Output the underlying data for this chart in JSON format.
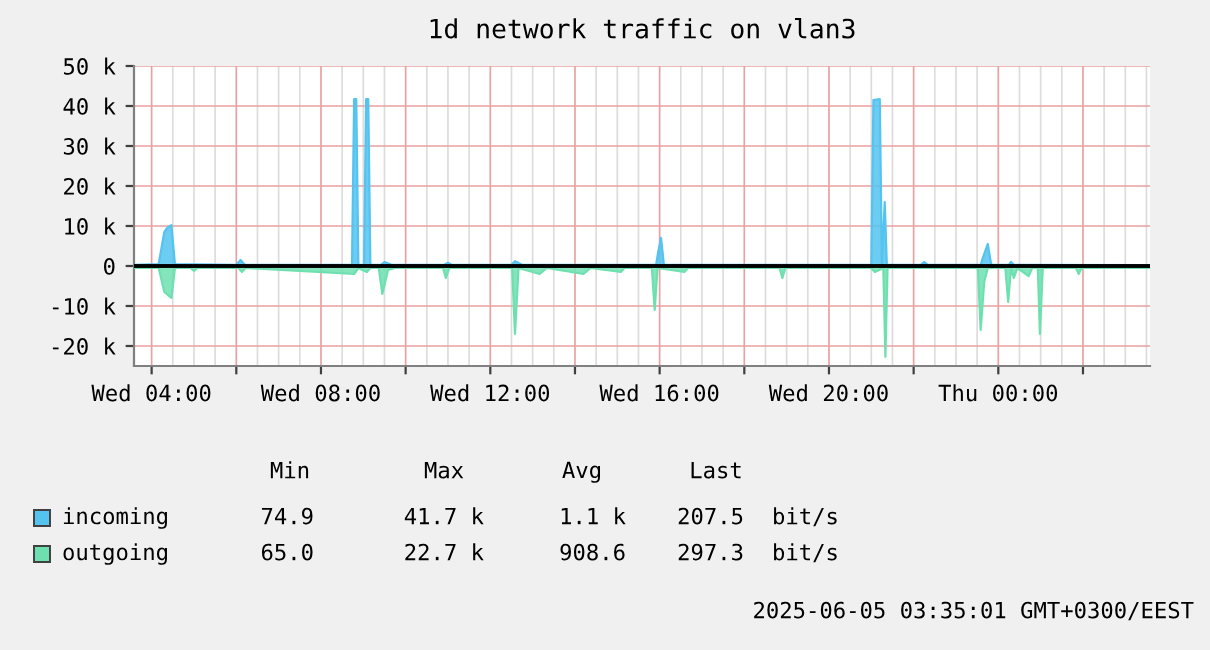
{
  "chart_data": {
    "type": "area",
    "title": "1d network traffic on vlan3",
    "xlim": [
      "2025-06-04T03:35",
      "2025-06-05T03:35"
    ],
    "xticks": [
      {
        "value": "2025-06-04T04:00",
        "label": "Wed 04:00"
      },
      {
        "value": "2025-06-04T06:00",
        "label": null
      },
      {
        "value": "2025-06-04T08:00",
        "label": "Wed 08:00"
      },
      {
        "value": "2025-06-04T10:00",
        "label": null
      },
      {
        "value": "2025-06-04T12:00",
        "label": "Wed 12:00"
      },
      {
        "value": "2025-06-04T14:00",
        "label": null
      },
      {
        "value": "2025-06-04T16:00",
        "label": "Wed 16:00"
      },
      {
        "value": "2025-06-04T18:00",
        "label": null
      },
      {
        "value": "2025-06-04T20:00",
        "label": "Wed 20:00"
      },
      {
        "value": "2025-06-04T22:00",
        "label": null
      },
      {
        "value": "2025-06-05T00:00",
        "label": "Thu 00:00"
      },
      {
        "value": "2025-06-05T02:00",
        "label": null
      }
    ],
    "ylim": [
      -25000,
      50000
    ],
    "yticks": [
      {
        "value": -20000,
        "label": "-20 k"
      },
      {
        "value": -10000,
        "label": "-10 k"
      },
      0,
      {
        "value": 10000,
        "label": "10 k"
      },
      {
        "value": 20000,
        "label": "20 k"
      },
      {
        "value": 30000,
        "label": "30 k"
      },
      {
        "value": 40000,
        "label": "40 k"
      },
      {
        "value": 50000,
        "label": "50 k"
      }
    ],
    "grid": true,
    "legend": "bottom",
    "series": [
      {
        "name": "incoming",
        "color": "#54c3f0",
        "x": [
          "2025-06-04T03:35",
          "2025-06-04T04:10",
          "2025-06-04T04:18",
          "2025-06-04T04:22",
          "2025-06-04T04:28",
          "2025-06-04T04:33",
          "2025-06-04T06:00",
          "2025-06-04T06:06",
          "2025-06-04T06:12",
          "2025-06-04T08:44",
          "2025-06-04T08:47",
          "2025-06-04T08:50",
          "2025-06-04T08:53",
          "2025-06-04T09:01",
          "2025-06-04T09:04",
          "2025-06-04T09:07",
          "2025-06-04T09:10",
          "2025-06-04T09:25",
          "2025-06-04T09:30",
          "2025-06-04T09:40",
          "2025-06-04T10:55",
          "2025-06-04T11:00",
          "2025-06-04T11:05",
          "2025-06-04T12:30",
          "2025-06-04T12:35",
          "2025-06-04T12:45",
          "2025-06-04T15:55",
          "2025-06-04T15:58",
          "2025-06-04T16:02",
          "2025-06-04T16:06",
          "2025-06-04T21:00",
          "2025-06-04T21:03",
          "2025-06-04T21:12",
          "2025-06-04T21:15",
          "2025-06-04T21:19",
          "2025-06-04T21:22",
          "2025-06-04T22:10",
          "2025-06-04T22:15",
          "2025-06-04T22:20",
          "2025-06-04T23:35",
          "2025-06-04T23:40",
          "2025-06-04T23:45",
          "2025-06-04T23:50",
          "2025-06-05T00:15",
          "2025-06-05T00:18",
          "2025-06-05T00:22",
          "2025-06-05T03:35"
        ],
        "values": [
          300,
          500,
          8500,
          9500,
          10200,
          500,
          300,
          1500,
          300,
          300,
          41700,
          41700,
          300,
          300,
          41700,
          41700,
          300,
          300,
          1000,
          300,
          300,
          800,
          300,
          300,
          1200,
          300,
          300,
          3500,
          7000,
          300,
          300,
          41500,
          41700,
          300,
          16000,
          300,
          300,
          1000,
          300,
          300,
          3000,
          5500,
          300,
          300,
          1000,
          300,
          200
        ]
      },
      {
        "name": "outgoing",
        "color": "#6ee0b0",
        "x": [
          "2025-06-04T03:35",
          "2025-06-04T04:10",
          "2025-06-04T04:18",
          "2025-06-04T04:28",
          "2025-06-04T04:33",
          "2025-06-04T04:55",
          "2025-06-04T05:00",
          "2025-06-04T05:05",
          "2025-06-04T06:03",
          "2025-06-04T06:08",
          "2025-06-04T06:13",
          "2025-06-04T08:47",
          "2025-06-04T08:53",
          "2025-06-04T09:05",
          "2025-06-04T09:10",
          "2025-06-04T09:22",
          "2025-06-04T09:27",
          "2025-06-04T09:35",
          "2025-06-04T09:45",
          "2025-06-04T10:53",
          "2025-06-04T10:57",
          "2025-06-04T11:02",
          "2025-06-04T12:31",
          "2025-06-04T12:35",
          "2025-06-04T12:40",
          "2025-06-04T13:10",
          "2025-06-04T13:20",
          "2025-06-04T14:12",
          "2025-06-04T14:22",
          "2025-06-04T15:05",
          "2025-06-04T15:10",
          "2025-06-04T15:49",
          "2025-06-04T15:53",
          "2025-06-04T15:57",
          "2025-06-04T16:35",
          "2025-06-04T16:40",
          "2025-06-04T18:50",
          "2025-06-04T18:54",
          "2025-06-04T18:58",
          "2025-06-04T21:00",
          "2025-06-04T21:05",
          "2025-06-04T21:17",
          "2025-06-04T21:20",
          "2025-06-04T21:23",
          "2025-06-04T23:31",
          "2025-06-04T23:35",
          "2025-06-04T23:40",
          "2025-06-04T23:45",
          "2025-06-05T00:10",
          "2025-06-05T00:14",
          "2025-06-05T00:18",
          "2025-06-05T00:22",
          "2025-06-05T00:27",
          "2025-06-05T00:43",
          "2025-06-05T00:48",
          "2025-06-05T00:56",
          "2025-06-05T00:59",
          "2025-06-05T01:03",
          "2025-06-05T01:50",
          "2025-06-05T01:54",
          "2025-06-05T01:58",
          "2025-06-05T03:35"
        ],
        "values": [
          -500,
          -500,
          -6500,
          -8000,
          -500,
          -500,
          -1200,
          -500,
          -500,
          -1500,
          -500,
          -2000,
          -500,
          -1500,
          -500,
          -500,
          -7000,
          -1000,
          -500,
          -500,
          -3000,
          -500,
          -500,
          -17000,
          -500,
          -2000,
          -500,
          -2000,
          -500,
          -1500,
          -500,
          -500,
          -11000,
          -500,
          -1500,
          -500,
          -500,
          -3000,
          -500,
          -500,
          -1500,
          -500,
          -22700,
          -500,
          -500,
          -16000,
          -4000,
          -500,
          -500,
          -9000,
          -500,
          -3000,
          -500,
          -2500,
          -500,
          -500,
          -17000,
          -500,
          -500,
          -2000,
          -500,
          -500
        ]
      }
    ],
    "annotations": [
      "Min",
      "Max",
      "Avg",
      "Last",
      "74.9",
      "41.7 k",
      "1.1 k",
      "207.5",
      "bit/s",
      "65.0",
      "22.7 k",
      "908.6",
      "297.3",
      "bit/s",
      "2025-06-05 03:35:01 GMT+0300/EEST"
    ]
  }
}
